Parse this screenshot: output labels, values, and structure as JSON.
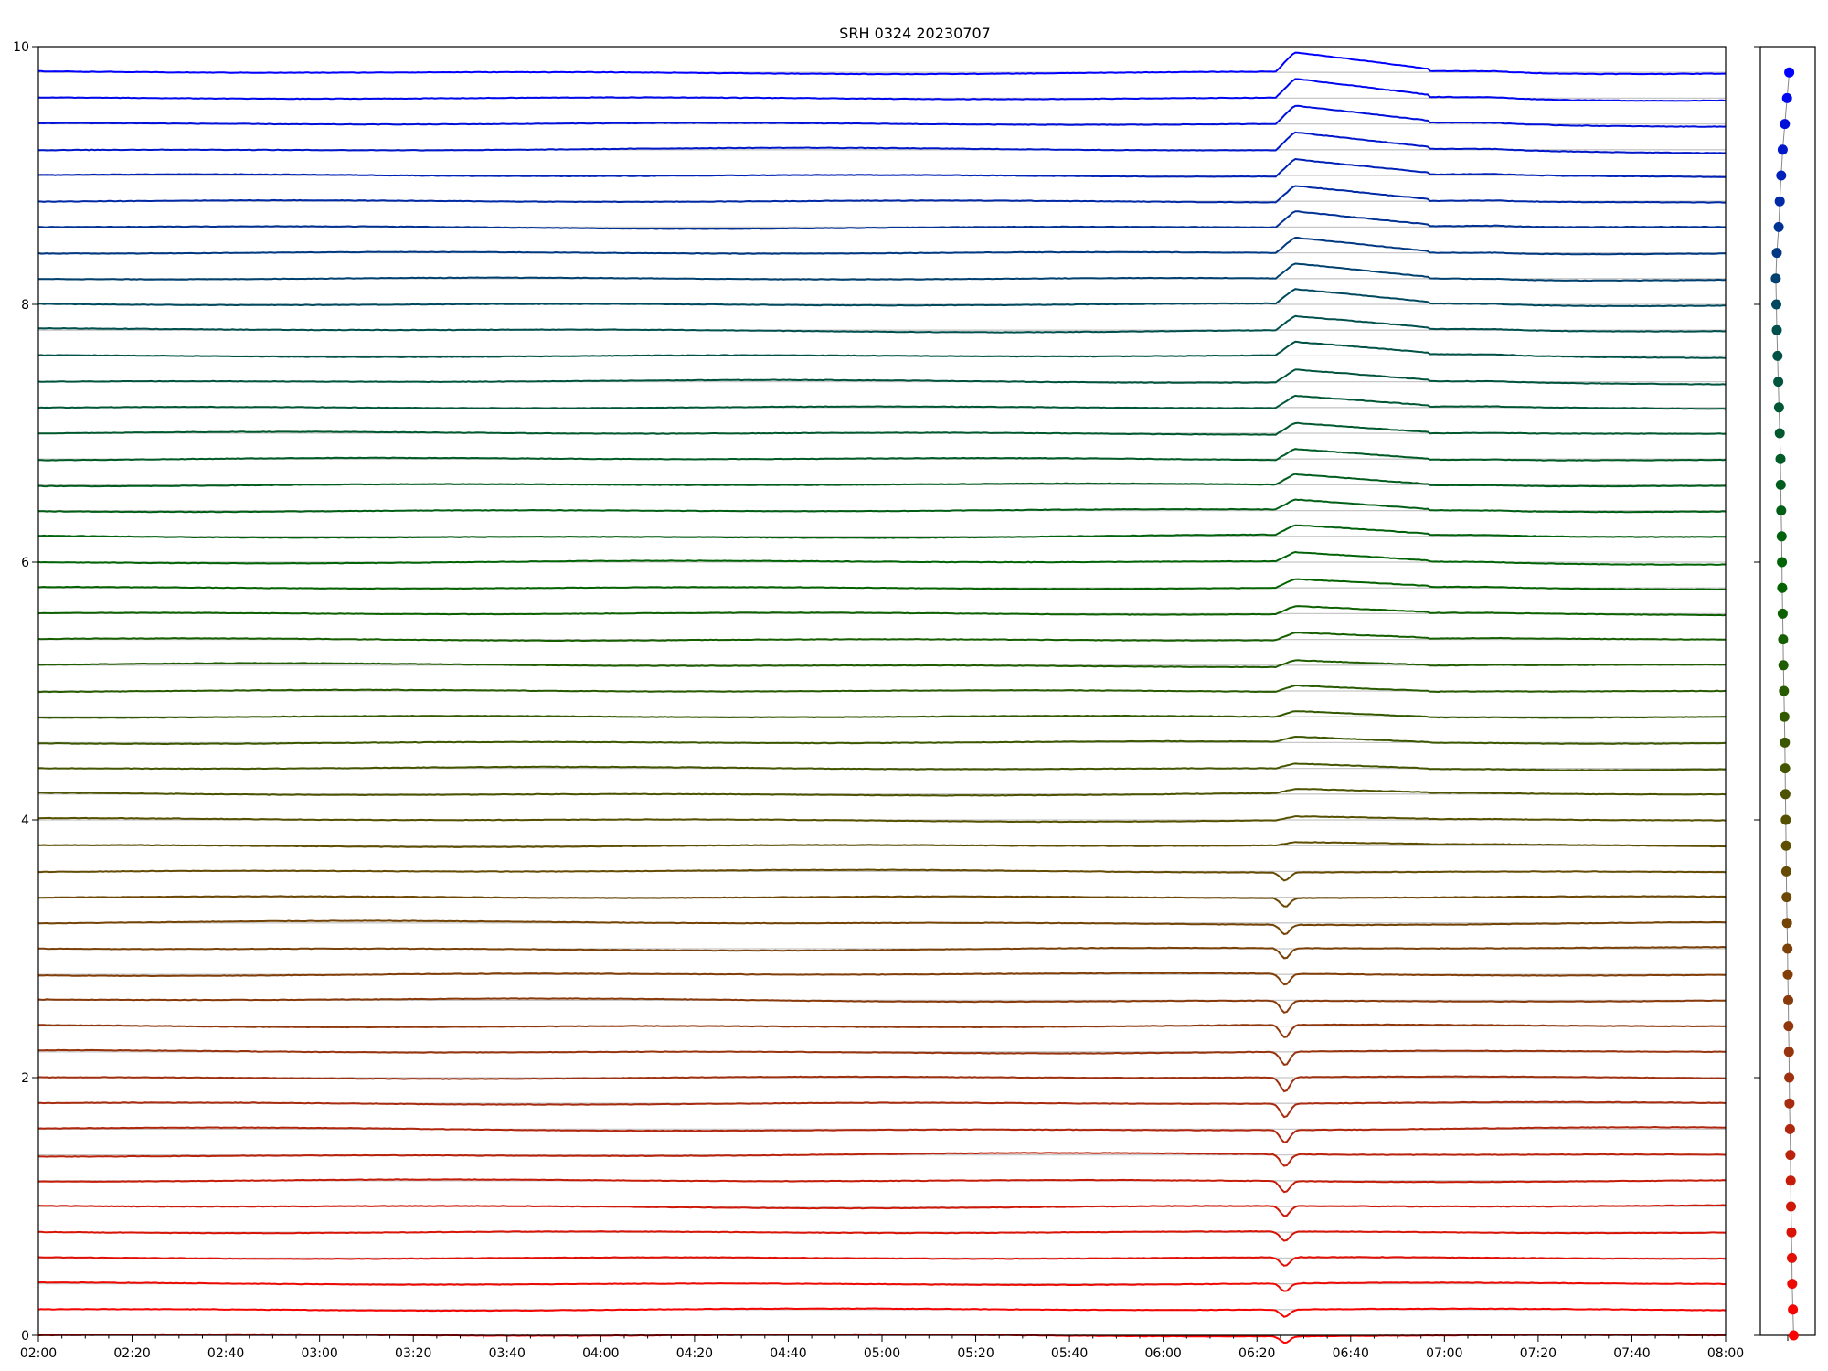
{
  "chart_data": {
    "type": "line",
    "title": "SRH 0324 20230707",
    "xlabel": "",
    "ylabel": "",
    "x_range": [
      "02:00",
      "08:00"
    ],
    "x_ticks": [
      "02:00",
      "02:20",
      "02:40",
      "03:00",
      "03:20",
      "03:40",
      "04:00",
      "04:20",
      "04:40",
      "05:00",
      "05:20",
      "05:40",
      "06:00",
      "06:20",
      "06:40",
      "07:00",
      "07:20",
      "07:40",
      "08:00"
    ],
    "ylim": [
      0,
      10
    ],
    "y_ticks": [
      "0",
      "2",
      "4",
      "6",
      "8",
      "10"
    ],
    "grid": "horizontal gray lines at each trace baseline",
    "legend": "none",
    "series_count": 50,
    "series_offset_step": 0.2,
    "series_color_gradient": [
      "#ff0000",
      "#a03010",
      "#5a5000",
      "#006400",
      "#005050",
      "#0000ff"
    ],
    "event": {
      "time": "06:26",
      "description_rows": "rows 0-18 show a dip; rows 19-49 show a rise followed by slow decay until about 06:55"
    },
    "side_panel": {
      "type": "scatter",
      "points_per_row": 50,
      "x_offsets": [
        0.4,
        0.35,
        0.3,
        0.28,
        0.25,
        0.22,
        0.2,
        0.18,
        0.15,
        0.12,
        0.1,
        0.08,
        0.05,
        0.03,
        0.0,
        -0.02,
        -0.05,
        -0.08,
        -0.1,
        -0.12,
        -0.14,
        -0.16,
        -0.18,
        -0.2,
        -0.23,
        -0.26,
        -0.3,
        -0.32,
        -0.35,
        -0.38,
        -0.4,
        -0.42,
        -0.45,
        -0.48,
        -0.5,
        -0.55,
        -0.6,
        -0.65,
        -0.7,
        -0.75,
        -0.78,
        -0.82,
        -0.75,
        -0.62,
        -0.55,
        -0.45,
        -0.35,
        -0.2,
        -0.05,
        0.1
      ]
    }
  }
}
